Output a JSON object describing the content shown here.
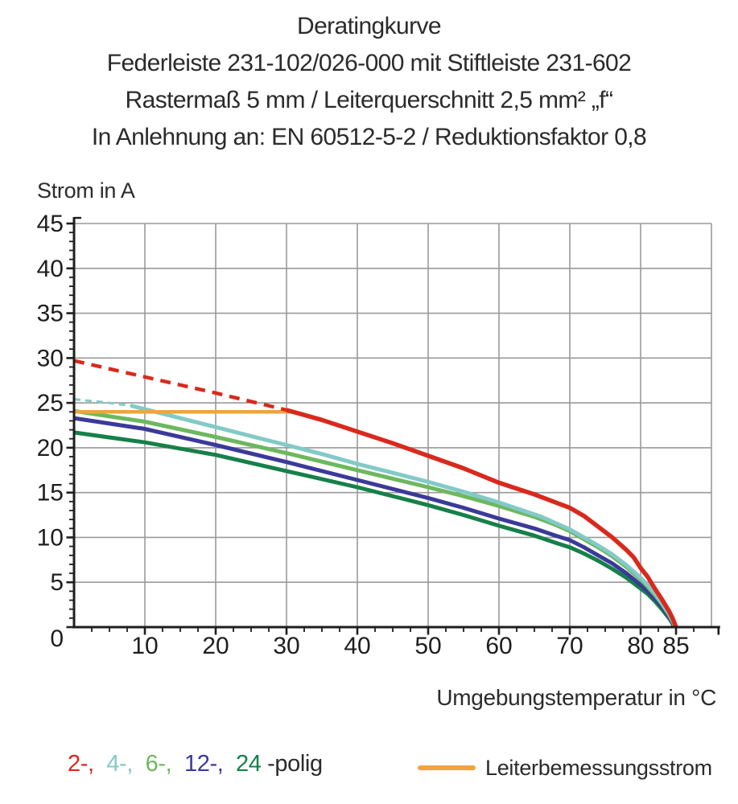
{
  "header": {
    "title": "Deratingkurve",
    "subtitle1": "Federleiste 231-102/026-000 mit Stiftleiste 231-602",
    "subtitle2": "Rastermaß 5 mm / Leiterquerschnitt 2,5 mm² „f“",
    "subtitle3": "In Anlehnung an: EN 60512-5-2 / Reduktionsfaktor 0,8"
  },
  "colors": {
    "grid": "#9a9a9a",
    "axis": "#1e1e1e",
    "tick_label": "#1e1e1e",
    "text": "#2b2b2b"
  },
  "chart_data": {
    "type": "line",
    "title": "Deratingkurve",
    "xlabel": "Umgebungstemperatur in °C",
    "ylabel": "Strom in A",
    "grid": true,
    "x_axis": {
      "label": "Umgebungstemperatur in °C",
      "min": 0,
      "max": 90,
      "major_ticks": [
        10,
        20,
        30,
        40,
        50,
        60,
        70,
        80,
        85
      ],
      "minor_step": 2.5,
      "grid_step": 10,
      "end_tick": 91
    },
    "y_axis": {
      "label": "Strom in A",
      "min": 0,
      "max": 45,
      "major_ticks": [
        0,
        5,
        10,
        15,
        20,
        25,
        30,
        35,
        40,
        45
      ],
      "minor_step": 1,
      "grid_step": 5
    },
    "series": [
      {
        "name": "2-polig",
        "color": "#d9291d",
        "z": 6,
        "segments": [
          {
            "style": "dashed",
            "dash": "13 9",
            "width": 4.5,
            "points": [
              [
                0,
                29.7
              ],
              [
                10,
                27.9
              ],
              [
                20,
                26.1
              ],
              [
                30,
                24.2
              ]
            ]
          },
          {
            "style": "solid",
            "width": 5.5,
            "points": [
              [
                30,
                24.2
              ],
              [
                35,
                23.1
              ],
              [
                40,
                21.8
              ],
              [
                45,
                20.5
              ],
              [
                50,
                19.1
              ],
              [
                55,
                17.7
              ],
              [
                60,
                16.1
              ],
              [
                65,
                14.8
              ],
              [
                68,
                13.9
              ],
              [
                70,
                13.3
              ],
              [
                72,
                12.4
              ],
              [
                74,
                11.2
              ],
              [
                76,
                10.0
              ],
              [
                78,
                8.6
              ],
              [
                79,
                7.8
              ],
              [
                80,
                6.6
              ],
              [
                81,
                5.6
              ],
              [
                82,
                4.3
              ],
              [
                83,
                3.1
              ],
              [
                84,
                1.8
              ],
              [
                84.5,
                1.0
              ],
              [
                85,
                0
              ]
            ]
          }
        ]
      },
      {
        "name": "4-polig",
        "color": "#82cac7",
        "z": 4,
        "segments": [
          {
            "style": "dashed",
            "dash": "8 6",
            "width": 3,
            "points": [
              [
                0,
                25.4
              ],
              [
                4,
                25.1
              ],
              [
                8,
                24.7
              ]
            ]
          },
          {
            "style": "solid",
            "width": 5,
            "points": [
              [
                8,
                24.7
              ],
              [
                10,
                24.3
              ],
              [
                15,
                23.3
              ],
              [
                20,
                22.3
              ],
              [
                25,
                21.3
              ],
              [
                30,
                20.3
              ],
              [
                35,
                19.3
              ],
              [
                40,
                18.2
              ],
              [
                45,
                17.2
              ],
              [
                50,
                16.2
              ],
              [
                55,
                15.1
              ],
              [
                60,
                13.9
              ],
              [
                63,
                13.1
              ],
              [
                66,
                12.3
              ],
              [
                68,
                11.6
              ],
              [
                70,
                10.9
              ],
              [
                72,
                10.0
              ],
              [
                74,
                9.1
              ],
              [
                76,
                8.1
              ],
              [
                78,
                6.9
              ],
              [
                80,
                5.5
              ],
              [
                81,
                4.7
              ],
              [
                82,
                3.8
              ],
              [
                83,
                2.7
              ],
              [
                84,
                1.5
              ],
              [
                84.6,
                0.6
              ],
              [
                84.9,
                0
              ]
            ]
          }
        ]
      },
      {
        "name": "6-polig",
        "color": "#6cb85e",
        "z": 3,
        "segments": [
          {
            "style": "solid",
            "width": 5,
            "points": [
              [
                0,
                24.1
              ],
              [
                10,
                22.9
              ],
              [
                20,
                21.2
              ],
              [
                30,
                19.4
              ],
              [
                40,
                17.5
              ],
              [
                50,
                15.6
              ],
              [
                55,
                14.6
              ],
              [
                60,
                13.5
              ],
              [
                65,
                12.3
              ],
              [
                68,
                11.4
              ],
              [
                70,
                10.7
              ],
              [
                72,
                9.8
              ],
              [
                74,
                8.9
              ],
              [
                76,
                7.9
              ],
              [
                78,
                6.7
              ],
              [
                80,
                5.3
              ],
              [
                81,
                4.5
              ],
              [
                82,
                3.6
              ],
              [
                83,
                2.6
              ],
              [
                84,
                1.4
              ],
              [
                84.6,
                0.5
              ],
              [
                84.9,
                0
              ]
            ]
          }
        ]
      },
      {
        "name": "12-polig",
        "color": "#3b3a9a",
        "z": 2,
        "segments": [
          {
            "style": "solid",
            "width": 5,
            "points": [
              [
                0,
                23.3
              ],
              [
                10,
                22.1
              ],
              [
                20,
                20.3
              ],
              [
                30,
                18.4
              ],
              [
                40,
                16.4
              ],
              [
                50,
                14.4
              ],
              [
                55,
                13.3
              ],
              [
                60,
                12.1
              ],
              [
                65,
                11.0
              ],
              [
                68,
                10.2
              ],
              [
                70,
                9.7
              ],
              [
                72,
                8.9
              ],
              [
                74,
                8.0
              ],
              [
                76,
                7.1
              ],
              [
                78,
                6.0
              ],
              [
                80,
                4.7
              ],
              [
                81,
                4.0
              ],
              [
                82,
                3.2
              ],
              [
                83,
                2.3
              ],
              [
                84,
                1.2
              ],
              [
                84.5,
                0.5
              ],
              [
                84.8,
                0
              ]
            ]
          }
        ]
      },
      {
        "name": "24-polig",
        "color": "#168049",
        "z": 1,
        "segments": [
          {
            "style": "solid",
            "width": 5,
            "points": [
              [
                0,
                21.7
              ],
              [
                10,
                20.6
              ],
              [
                20,
                19.2
              ],
              [
                30,
                17.4
              ],
              [
                40,
                15.6
              ],
              [
                50,
                13.6
              ],
              [
                55,
                12.5
              ],
              [
                60,
                11.3
              ],
              [
                65,
                10.2
              ],
              [
                68,
                9.4
              ],
              [
                70,
                8.9
              ],
              [
                72,
                8.2
              ],
              [
                74,
                7.4
              ],
              [
                76,
                6.5
              ],
              [
                78,
                5.5
              ],
              [
                80,
                4.3
              ],
              [
                81,
                3.7
              ],
              [
                82,
                2.9
              ],
              [
                83,
                2.0
              ],
              [
                84,
                1.0
              ],
              [
                84.5,
                0.4
              ],
              [
                84.7,
                0
              ]
            ]
          }
        ]
      },
      {
        "name": "Leiterbemessungsstrom",
        "color": "#f0a343",
        "z": 5,
        "segments": [
          {
            "style": "solid",
            "width": 4.5,
            "points": [
              [
                0,
                24
              ],
              [
                31,
                24
              ]
            ]
          }
        ]
      }
    ]
  },
  "legend": {
    "poles": {
      "items": [
        {
          "label": "2-,",
          "color": "#d9291d"
        },
        {
          "label": "4-,",
          "color": "#82cac7"
        },
        {
          "label": "6-,",
          "color": "#6cb85e"
        },
        {
          "label": "12-,",
          "color": "#3b3a9a"
        },
        {
          "label": "24",
          "color": "#168049"
        }
      ],
      "suffix": "-polig",
      "text_color": "#2b2b2b"
    },
    "rated": {
      "label": "Leiterbemessungsstrom",
      "color": "#f0a343"
    }
  }
}
